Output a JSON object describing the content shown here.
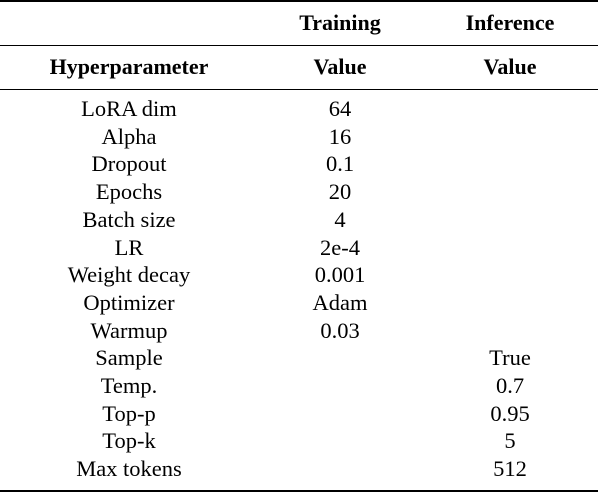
{
  "header": {
    "group_row": {
      "param": "",
      "training": "Training",
      "inference": "Inference"
    },
    "label_row": {
      "param": "Hyperparameter",
      "training": "Value",
      "inference": "Value"
    }
  },
  "rows": [
    {
      "param": "LoRA dim",
      "training": "64",
      "inference": ""
    },
    {
      "param": "Alpha",
      "training": "16",
      "inference": ""
    },
    {
      "param": "Dropout",
      "training": "0.1",
      "inference": ""
    },
    {
      "param": "Epochs",
      "training": "20",
      "inference": ""
    },
    {
      "param": "Batch size",
      "training": "4",
      "inference": ""
    },
    {
      "param": "LR",
      "training": "2e-4",
      "inference": ""
    },
    {
      "param": "Weight decay",
      "training": "0.001",
      "inference": ""
    },
    {
      "param": "Optimizer",
      "training": "Adam",
      "inference": ""
    },
    {
      "param": "Warmup",
      "training": "0.03",
      "inference": ""
    },
    {
      "param": "Sample",
      "training": "",
      "inference": "True"
    },
    {
      "param": "Temp.",
      "training": "",
      "inference": "0.7"
    },
    {
      "param": "Top-p",
      "training": "",
      "inference": "0.95"
    },
    {
      "param": "Top-k",
      "training": "",
      "inference": "5"
    },
    {
      "param": "Max tokens",
      "training": "",
      "inference": "512"
    }
  ]
}
